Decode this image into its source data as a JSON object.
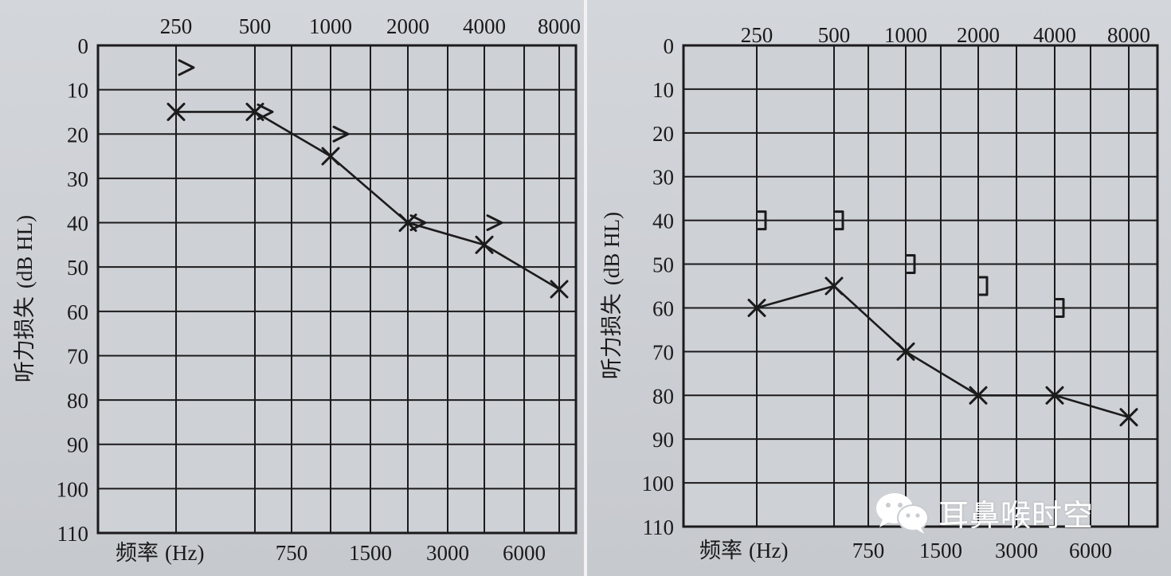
{
  "chart_data": [
    {
      "type": "line",
      "ylabel": "听力损失",
      "ylabel_unit": "(dB HL)",
      "xlabel": "频率",
      "xlabel_unit": "(Hz)",
      "top_ticks": [
        "250",
        "500",
        "1000",
        "2000",
        "4000",
        "8000"
      ],
      "bottom_ticks": [
        "750",
        "1500",
        "3000",
        "6000"
      ],
      "y_ticks": [
        "0",
        "10",
        "20",
        "30",
        "40",
        "50",
        "60",
        "70",
        "80",
        "90",
        "100",
        "110"
      ],
      "ylim": [
        0,
        110
      ],
      "y_inverted": true,
      "grid": true,
      "series": [
        {
          "marker": "x",
          "connected": true,
          "x": [
            250,
            500,
            1000,
            2000,
            4000,
            8000
          ],
          "y": [
            15,
            15,
            25,
            40,
            45,
            55
          ]
        },
        {
          "marker": ">",
          "connected": false,
          "x": [
            250,
            500,
            1000,
            2000,
            4000
          ],
          "y": [
            5,
            15,
            20,
            40,
            40
          ]
        }
      ]
    },
    {
      "type": "line",
      "ylabel": "听力损失",
      "ylabel_unit": "(dB HL)",
      "xlabel": "频率",
      "xlabel_unit": "(Hz)",
      "top_ticks": [
        "250",
        "500",
        "1000",
        "2000",
        "4000",
        "8000"
      ],
      "bottom_ticks": [
        "750",
        "1500",
        "3000",
        "6000"
      ],
      "y_ticks": [
        "0",
        "10",
        "20",
        "30",
        "40",
        "50",
        "60",
        "70",
        "80",
        "90",
        "100",
        "110"
      ],
      "ylim": [
        0,
        110
      ],
      "y_inverted": true,
      "grid": true,
      "series": [
        {
          "marker": "x",
          "connected": true,
          "x": [
            250,
            500,
            1000,
            2000,
            4000,
            8000
          ],
          "y": [
            60,
            55,
            70,
            80,
            80,
            85
          ]
        },
        {
          "marker": "]",
          "connected": false,
          "x": [
            250,
            500,
            1000,
            2000,
            4000
          ],
          "y": [
            40,
            40,
            50,
            55,
            60
          ]
        }
      ]
    }
  ],
  "watermark": {
    "text": "耳鼻喉时空",
    "icon": "wechat-icon"
  }
}
